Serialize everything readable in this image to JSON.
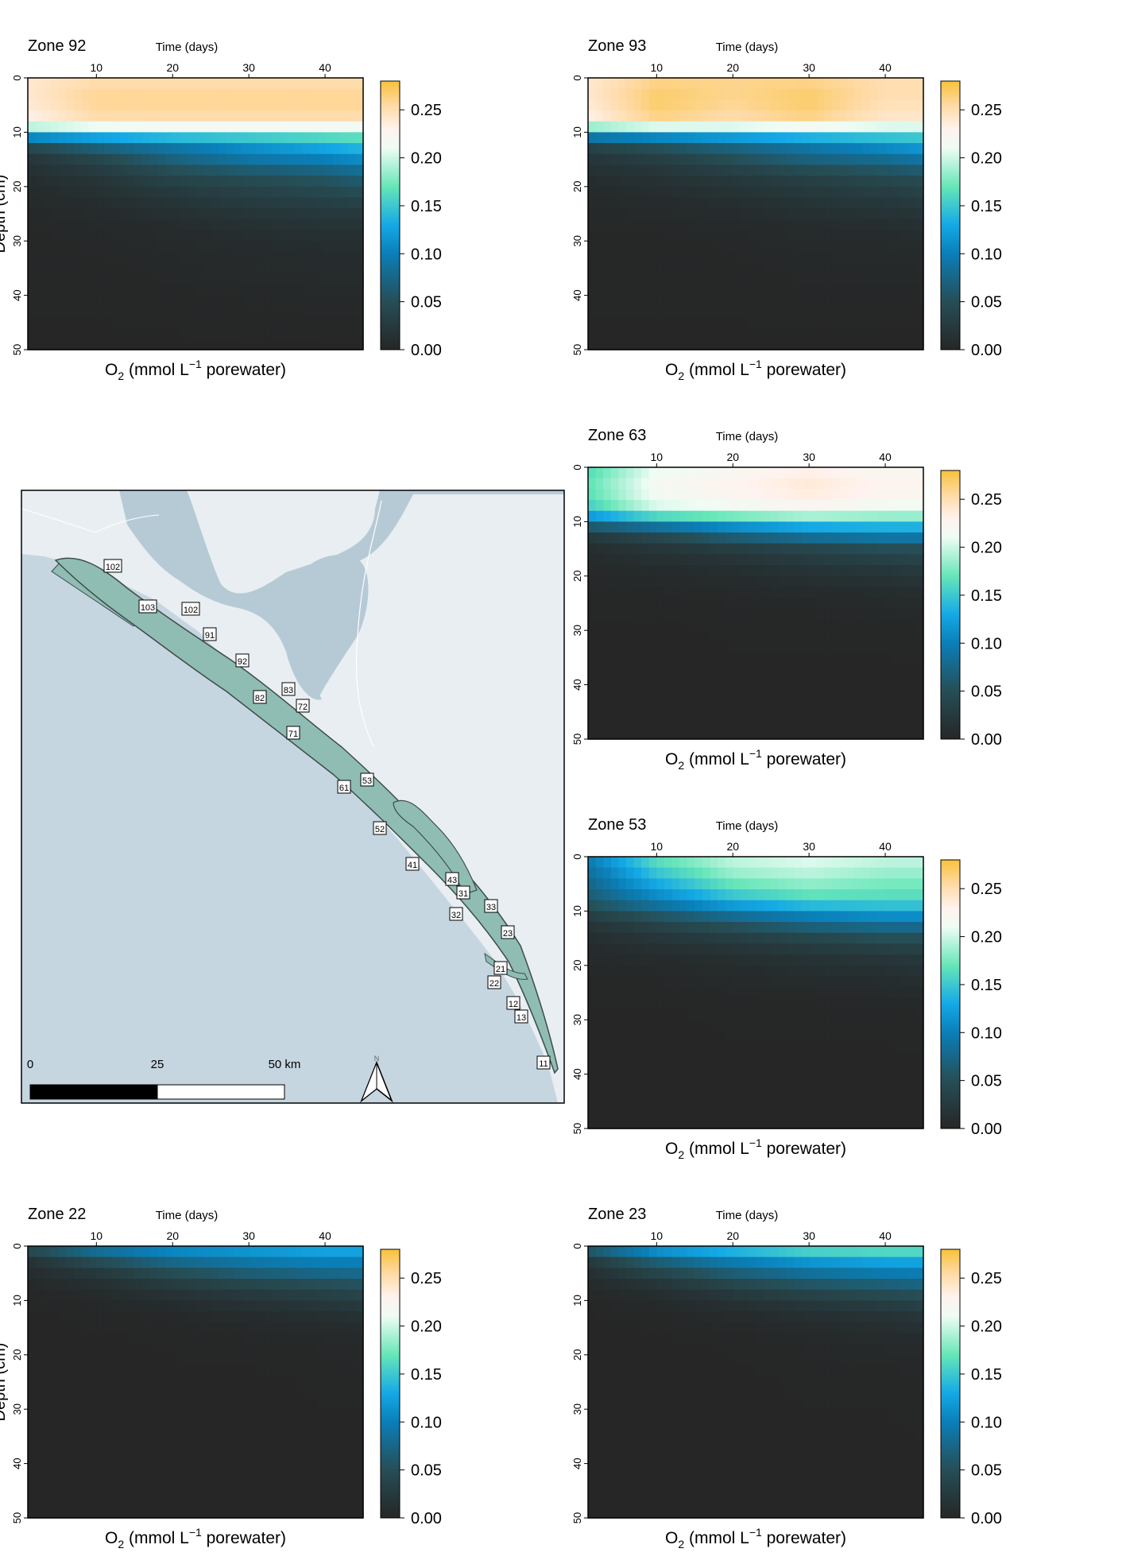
{
  "chart_data": [
    {
      "type": "heatmap",
      "title": "Zone 92",
      "xlabel": "Time (days)",
      "ylabel": "Depth (cm)",
      "colorbar_label": "O₂ (mmol L⁻¹ porewater)",
      "xlim": [
        1,
        45
      ],
      "x_ticks": [
        10,
        20,
        30,
        40
      ],
      "ylim": [
        0,
        50
      ],
      "y_ticks": [
        0,
        10,
        20,
        30,
        40,
        50
      ],
      "y_reversed": true,
      "colorbar_range": [
        0,
        0.28
      ],
      "colorbar_ticks": [
        "0.00",
        "0.05",
        "0.10",
        "0.15",
        "0.20",
        "0.25"
      ],
      "times": [
        1,
        10,
        20,
        30,
        40,
        45
      ],
      "depths": [
        0,
        4,
        8,
        10,
        12,
        15,
        18,
        22,
        26,
        30,
        40,
        50
      ],
      "values": [
        [
          0.24,
          0.25,
          0.25,
          0.25,
          0.25,
          0.25
        ],
        [
          0.24,
          0.26,
          0.26,
          0.26,
          0.26,
          0.26
        ],
        [
          0.23,
          0.25,
          0.25,
          0.25,
          0.25,
          0.25
        ],
        [
          0.16,
          0.17,
          0.18,
          0.18,
          0.18,
          0.18
        ],
        [
          0.05,
          0.08,
          0.1,
          0.12,
          0.14,
          0.15
        ],
        [
          0.02,
          0.04,
          0.07,
          0.09,
          0.1,
          0.11
        ],
        [
          0.01,
          0.02,
          0.04,
          0.05,
          0.06,
          0.07
        ],
        [
          0.005,
          0.01,
          0.02,
          0.03,
          0.035,
          0.04
        ],
        [
          0.003,
          0.005,
          0.01,
          0.015,
          0.02,
          0.02
        ],
        [
          0.002,
          0.003,
          0.005,
          0.008,
          0.01,
          0.01
        ],
        [
          0.001,
          0.001,
          0.002,
          0.003,
          0.004,
          0.004
        ],
        [
          0,
          0,
          0,
          0,
          0,
          0
        ]
      ]
    },
    {
      "type": "heatmap",
      "title": "Zone 93",
      "xlabel": "Time (days)",
      "ylabel": "",
      "colorbar_label": "O₂ (mmol L⁻¹ porewater)",
      "xlim": [
        1,
        45
      ],
      "x_ticks": [
        10,
        20,
        30,
        40
      ],
      "ylim": [
        0,
        50
      ],
      "y_ticks": [
        0,
        10,
        20,
        30,
        40,
        50
      ],
      "y_reversed": true,
      "colorbar_range": [
        0,
        0.28
      ],
      "colorbar_ticks": [
        "0.00",
        "0.05",
        "0.10",
        "0.15",
        "0.20",
        "0.25"
      ],
      "times": [
        1,
        10,
        20,
        30,
        40,
        45
      ],
      "depths": [
        0,
        4,
        8,
        10,
        12,
        15,
        18,
        22,
        26,
        30,
        40,
        50
      ],
      "values": [
        [
          0.24,
          0.26,
          0.26,
          0.26,
          0.25,
          0.25
        ],
        [
          0.24,
          0.27,
          0.26,
          0.27,
          0.25,
          0.25
        ],
        [
          0.23,
          0.26,
          0.25,
          0.26,
          0.24,
          0.24
        ],
        [
          0.14,
          0.15,
          0.16,
          0.17,
          0.17,
          0.17
        ],
        [
          0.04,
          0.06,
          0.08,
          0.1,
          0.12,
          0.13
        ],
        [
          0.02,
          0.03,
          0.05,
          0.07,
          0.08,
          0.09
        ],
        [
          0.01,
          0.015,
          0.025,
          0.035,
          0.045,
          0.05
        ],
        [
          0.005,
          0.008,
          0.012,
          0.02,
          0.025,
          0.03
        ],
        [
          0.003,
          0.004,
          0.006,
          0.01,
          0.012,
          0.015
        ],
        [
          0.002,
          0.002,
          0.003,
          0.005,
          0.006,
          0.007
        ],
        [
          0.001,
          0.001,
          0.001,
          0.002,
          0.002,
          0.002
        ],
        [
          0,
          0,
          0,
          0,
          0,
          0
        ]
      ]
    },
    {
      "type": "heatmap",
      "title": "Zone 63",
      "xlabel": "Time (days)",
      "ylabel": "",
      "colorbar_label": "O₂ (mmol L⁻¹ porewater)",
      "xlim": [
        1,
        45
      ],
      "x_ticks": [
        10,
        20,
        30,
        40
      ],
      "ylim": [
        0,
        50
      ],
      "y_ticks": [
        0,
        10,
        20,
        30,
        40,
        50
      ],
      "y_reversed": true,
      "colorbar_range": [
        0,
        0.28
      ],
      "colorbar_ticks": [
        "0.00",
        "0.05",
        "0.10",
        "0.15",
        "0.20",
        "0.25"
      ],
      "times": [
        1,
        10,
        20,
        30,
        40,
        45
      ],
      "depths": [
        0,
        4,
        8,
        10,
        12,
        15,
        18,
        22,
        26,
        30,
        40,
        50
      ],
      "values": [
        [
          0.16,
          0.21,
          0.22,
          0.23,
          0.22,
          0.22
        ],
        [
          0.17,
          0.22,
          0.23,
          0.24,
          0.23,
          0.23
        ],
        [
          0.15,
          0.2,
          0.21,
          0.22,
          0.21,
          0.21
        ],
        [
          0.09,
          0.12,
          0.14,
          0.16,
          0.16,
          0.16
        ],
        [
          0.03,
          0.05,
          0.08,
          0.1,
          0.11,
          0.11
        ],
        [
          0.01,
          0.02,
          0.03,
          0.04,
          0.05,
          0.05
        ],
        [
          0.005,
          0.008,
          0.012,
          0.02,
          0.025,
          0.03
        ],
        [
          0.002,
          0.003,
          0.005,
          0.008,
          0.01,
          0.012
        ],
        [
          0.001,
          0.001,
          0.002,
          0.003,
          0.004,
          0.005
        ],
        [
          0,
          0,
          0.001,
          0.001,
          0.001,
          0.002
        ],
        [
          0,
          0,
          0,
          0,
          0,
          0
        ],
        [
          0,
          0,
          0,
          0,
          0,
          0
        ]
      ]
    },
    {
      "type": "heatmap",
      "title": "Zone 53",
      "xlabel": "Time (days)",
      "ylabel": "",
      "colorbar_label": "O₂ (mmol L⁻¹ porewater)",
      "xlim": [
        1,
        45
      ],
      "x_ticks": [
        10,
        20,
        30,
        40
      ],
      "ylim": [
        0,
        50
      ],
      "y_ticks": [
        0,
        10,
        20,
        30,
        40,
        50
      ],
      "y_reversed": true,
      "colorbar_range": [
        0,
        0.28
      ],
      "colorbar_ticks": [
        "0.00",
        "0.05",
        "0.10",
        "0.15",
        "0.20",
        "0.25"
      ],
      "times": [
        1,
        10,
        20,
        30,
        40,
        45
      ],
      "depths": [
        0,
        4,
        8,
        10,
        12,
        15,
        18,
        22,
        26,
        30,
        40,
        50
      ],
      "values": [
        [
          0.1,
          0.17,
          0.2,
          0.21,
          0.2,
          0.2
        ],
        [
          0.08,
          0.14,
          0.18,
          0.19,
          0.18,
          0.18
        ],
        [
          0.06,
          0.1,
          0.14,
          0.16,
          0.16,
          0.16
        ],
        [
          0.04,
          0.07,
          0.1,
          0.12,
          0.13,
          0.13
        ],
        [
          0.02,
          0.04,
          0.06,
          0.08,
          0.09,
          0.09
        ],
        [
          0.01,
          0.02,
          0.03,
          0.04,
          0.05,
          0.05
        ],
        [
          0.005,
          0.008,
          0.012,
          0.018,
          0.022,
          0.025
        ],
        [
          0.002,
          0.003,
          0.005,
          0.008,
          0.01,
          0.012
        ],
        [
          0.001,
          0.001,
          0.002,
          0.003,
          0.004,
          0.005
        ],
        [
          0,
          0,
          0.001,
          0.001,
          0.001,
          0.002
        ],
        [
          0,
          0,
          0,
          0,
          0,
          0
        ],
        [
          0,
          0,
          0,
          0,
          0,
          0
        ]
      ]
    },
    {
      "type": "heatmap",
      "title": "Zone 22",
      "xlabel": "Time (days)",
      "ylabel": "Depth (cm)",
      "colorbar_label": "O₂ (mmol L⁻¹ porewater)",
      "xlim": [
        1,
        45
      ],
      "x_ticks": [
        10,
        20,
        30,
        40
      ],
      "ylim": [
        0,
        50
      ],
      "y_ticks": [
        0,
        10,
        20,
        30,
        40,
        50
      ],
      "y_reversed": true,
      "colorbar_range": [
        0,
        0.28
      ],
      "colorbar_ticks": [
        "0.00",
        "0.05",
        "0.10",
        "0.15",
        "0.20",
        "0.25"
      ],
      "times": [
        1,
        10,
        20,
        30,
        40,
        45
      ],
      "depths": [
        0,
        2,
        4,
        6,
        8,
        10,
        12,
        14,
        18,
        25,
        40,
        50
      ],
      "values": [
        [
          0.06,
          0.1,
          0.12,
          0.13,
          0.14,
          0.14
        ],
        [
          0.02,
          0.06,
          0.09,
          0.1,
          0.11,
          0.11
        ],
        [
          0.01,
          0.03,
          0.06,
          0.08,
          0.09,
          0.09
        ],
        [
          0.005,
          0.015,
          0.035,
          0.05,
          0.06,
          0.065
        ],
        [
          0.002,
          0.008,
          0.02,
          0.03,
          0.04,
          0.045
        ],
        [
          0.001,
          0.004,
          0.01,
          0.018,
          0.025,
          0.03
        ],
        [
          0,
          0.002,
          0.005,
          0.01,
          0.015,
          0.018
        ],
        [
          0,
          0.001,
          0.002,
          0.005,
          0.008,
          0.01
        ],
        [
          0,
          0,
          0.001,
          0.002,
          0.003,
          0.004
        ],
        [
          0,
          0,
          0,
          0,
          0.001,
          0.001
        ],
        [
          0,
          0,
          0,
          0,
          0,
          0
        ],
        [
          0,
          0,
          0,
          0,
          0,
          0
        ]
      ]
    },
    {
      "type": "heatmap",
      "title": "Zone 23",
      "xlabel": "Time (days)",
      "ylabel": "",
      "colorbar_label": "O₂ (mmol L⁻¹ porewater)",
      "xlim": [
        1,
        45
      ],
      "x_ticks": [
        10,
        20,
        30,
        40
      ],
      "ylim": [
        0,
        50
      ],
      "y_ticks": [
        0,
        10,
        20,
        30,
        40,
        50
      ],
      "y_reversed": true,
      "colorbar_range": [
        0,
        0.28
      ],
      "colorbar_ticks": [
        "0.00",
        "0.05",
        "0.10",
        "0.15",
        "0.20",
        "0.25"
      ],
      "times": [
        1,
        10,
        20,
        30,
        40,
        45
      ],
      "depths": [
        0,
        2,
        4,
        6,
        8,
        10,
        12,
        14,
        18,
        25,
        40,
        50
      ],
      "values": [
        [
          0.08,
          0.14,
          0.16,
          0.18,
          0.18,
          0.18
        ],
        [
          0.03,
          0.08,
          0.11,
          0.13,
          0.14,
          0.14
        ],
        [
          0.015,
          0.05,
          0.08,
          0.1,
          0.11,
          0.11
        ],
        [
          0.008,
          0.025,
          0.05,
          0.07,
          0.08,
          0.085
        ],
        [
          0.004,
          0.012,
          0.03,
          0.045,
          0.055,
          0.06
        ],
        [
          0.002,
          0.006,
          0.015,
          0.025,
          0.035,
          0.04
        ],
        [
          0.001,
          0.003,
          0.008,
          0.015,
          0.02,
          0.025
        ],
        [
          0,
          0.001,
          0.004,
          0.008,
          0.012,
          0.015
        ],
        [
          0,
          0,
          0.001,
          0.003,
          0.005,
          0.006
        ],
        [
          0,
          0,
          0,
          0.001,
          0.001,
          0.002
        ],
        [
          0,
          0,
          0,
          0,
          0,
          0
        ],
        [
          0,
          0,
          0,
          0,
          0,
          0
        ]
      ]
    }
  ],
  "map": {
    "zone_labels": [
      "102",
      "103",
      "102",
      "91",
      "92",
      "83",
      "82",
      "72",
      "71",
      "53",
      "61",
      "52",
      "41",
      "43",
      "31",
      "33",
      "32",
      "23",
      "21",
      "22",
      "12",
      "13",
      "11"
    ],
    "scale_labels": [
      "0",
      "25",
      "50 km"
    ],
    "north_label": "N",
    "colors": {
      "sea": "#c6d6e0",
      "land": "#e8eef2",
      "inland_water": "#b6cad6",
      "zones": "#8fbdb3",
      "zone_outline": "#3e4a4a"
    }
  },
  "colorscale": {
    "stops": [
      [
        0.0,
        "#262626"
      ],
      [
        0.05,
        "#264e56"
      ],
      [
        0.1,
        "#0a7fb8"
      ],
      [
        0.13,
        "#14a9e6"
      ],
      [
        0.17,
        "#66e6b8"
      ],
      [
        0.21,
        "#eefcf4"
      ],
      [
        0.23,
        "#fff2ee"
      ],
      [
        0.255,
        "#ffd9a3"
      ],
      [
        0.28,
        "#f7c23a"
      ]
    ]
  }
}
